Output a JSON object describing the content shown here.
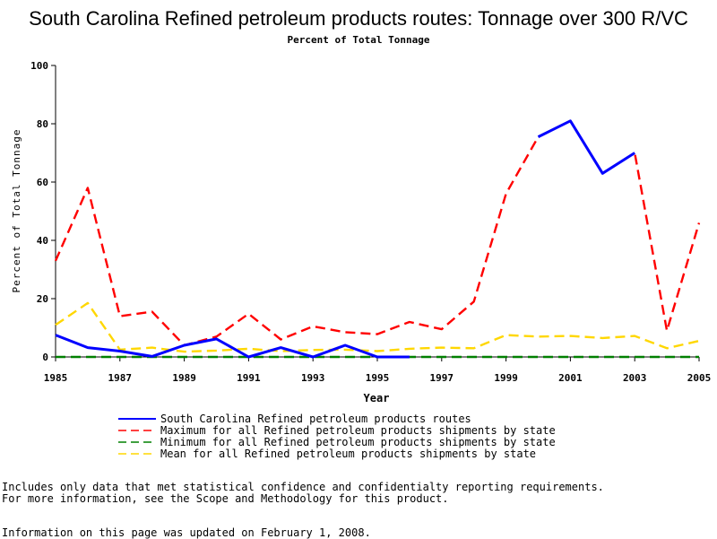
{
  "chart_data": {
    "type": "line",
    "title": "South Carolina Refined petroleum products routes: Tonnage over 300 R/VC",
    "subtitle": "Percent of Total Tonnage",
    "xlabel": "Year",
    "ylabel": "Percent of Total Tonnage",
    "xlim": [
      1985,
      2005
    ],
    "ylim": [
      0,
      100
    ],
    "x_ticks": [
      "1985",
      "1987",
      "1989",
      "1991",
      "1993",
      "1995",
      "1997",
      "1999",
      "2001",
      "2003",
      "2005"
    ],
    "y_ticks": [
      "0",
      "20",
      "40",
      "60",
      "80",
      "100"
    ],
    "grid": false,
    "legend_position": "bottom",
    "series": [
      {
        "name": "South Carolina Refined petroleum products routes",
        "color": "#0000ff",
        "style": "solid",
        "segments": [
          [
            [
              1985,
              7.5
            ],
            [
              1986,
              3.2
            ],
            [
              1987,
              2.0
            ],
            [
              1988,
              0.2
            ],
            [
              1989,
              4.0
            ],
            [
              1990,
              6.2
            ],
            [
              1991,
              0.0
            ],
            [
              1992,
              3.2
            ],
            [
              1993,
              0.0
            ],
            [
              1994,
              4.0
            ],
            [
              1995,
              0.0
            ],
            [
              1996,
              0.0
            ]
          ],
          [
            [
              2000,
              75.5
            ],
            [
              2001,
              81.0
            ],
            [
              2002,
              63.0
            ],
            [
              2003,
              70.0
            ]
          ]
        ]
      },
      {
        "name": "Maximum for all Refined petroleum products shipments by state",
        "color": "#ff0000",
        "style": "dashed",
        "segments": [
          [
            [
              1985,
              33.0
            ],
            [
              1986,
              58.0
            ],
            [
              1987,
              14.0
            ],
            [
              1988,
              15.5
            ],
            [
              1989,
              4.0
            ],
            [
              1990,
              7.0
            ],
            [
              1991,
              14.8
            ],
            [
              1992,
              6.0
            ],
            [
              1993,
              10.5
            ],
            [
              1994,
              8.5
            ],
            [
              1995,
              7.8
            ],
            [
              1996,
              12.0
            ],
            [
              1997,
              9.5
            ],
            [
              1998,
              19.0
            ],
            [
              1999,
              56.0
            ],
            [
              2000,
              75.5
            ],
            [
              2001,
              81.0
            ],
            [
              2002,
              63.0
            ],
            [
              2003,
              70.0
            ],
            [
              2004,
              9.0
            ],
            [
              2005,
              46.0
            ]
          ]
        ]
      },
      {
        "name": "Minimum for all Refined petroleum products shipments by state",
        "color": "#008000",
        "style": "dashed",
        "segments": [
          [
            [
              1985,
              0.0
            ],
            [
              1986,
              0.0
            ],
            [
              1987,
              0.0
            ],
            [
              1988,
              0.0
            ],
            [
              1989,
              0.0
            ],
            [
              1990,
              0.0
            ],
            [
              1991,
              0.0
            ],
            [
              1992,
              0.0
            ],
            [
              1993,
              0.0
            ],
            [
              1994,
              0.0
            ],
            [
              1995,
              0.0
            ],
            [
              1996,
              0.0
            ],
            [
              1997,
              0.0
            ],
            [
              1998,
              0.0
            ],
            [
              1999,
              0.0
            ],
            [
              2000,
              0.0
            ],
            [
              2001,
              0.0
            ],
            [
              2002,
              0.0
            ],
            [
              2003,
              0.0
            ],
            [
              2004,
              0.0
            ],
            [
              2005,
              0.0
            ]
          ]
        ]
      },
      {
        "name": "Mean for all Refined petroleum products shipments by state",
        "color": "#ffd700",
        "style": "dashed",
        "segments": [
          [
            [
              1985,
              11.0
            ],
            [
              1986,
              18.5
            ],
            [
              1987,
              2.5
            ],
            [
              1988,
              3.2
            ],
            [
              1989,
              1.8
            ],
            [
              1990,
              2.2
            ],
            [
              1991,
              2.8
            ],
            [
              1992,
              2.0
            ],
            [
              1993,
              2.4
            ],
            [
              1994,
              2.5
            ],
            [
              1995,
              2.0
            ],
            [
              1996,
              2.8
            ],
            [
              1997,
              3.2
            ],
            [
              1998,
              3.0
            ],
            [
              1999,
              7.5
            ],
            [
              2000,
              7.0
            ],
            [
              2001,
              7.2
            ],
            [
              2002,
              6.5
            ],
            [
              2003,
              7.2
            ],
            [
              2004,
              3.0
            ],
            [
              2005,
              5.5
            ]
          ]
        ]
      }
    ]
  },
  "notes": {
    "line1": "Includes only data that met statistical confidence and confidentialty reporting requirements.",
    "line2": "For more information, see the Scope and Methodology for this product.",
    "updated": "Information on this page was updated on February 1, 2008."
  }
}
